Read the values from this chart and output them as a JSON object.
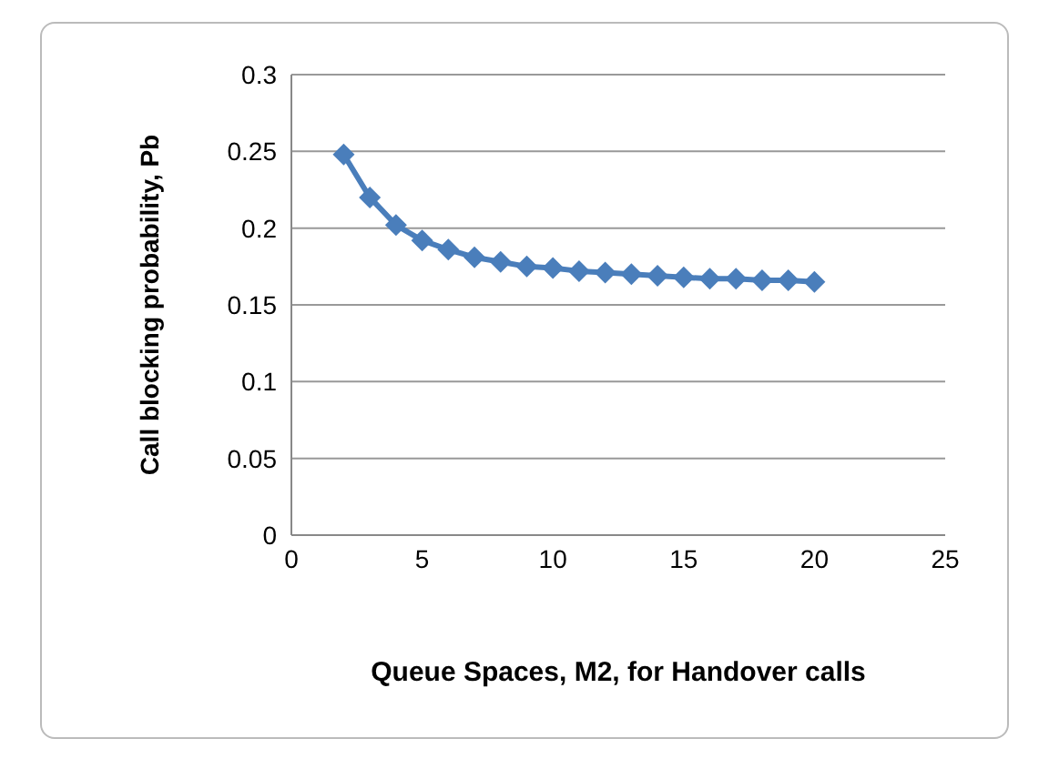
{
  "chart_data": {
    "type": "line",
    "xlabel": "Queue Spaces, M2, for Handover calls",
    "ylabel": "Call blocking  probability, Pb",
    "x": [
      2,
      3,
      4,
      5,
      6,
      7,
      8,
      9,
      10,
      11,
      12,
      13,
      14,
      15,
      16,
      17,
      18,
      19,
      20
    ],
    "series": [
      {
        "color": "#4a7ebb",
        "values": [
          0.248,
          0.22,
          0.202,
          0.192,
          0.186,
          0.181,
          0.178,
          0.175,
          0.174,
          0.172,
          0.171,
          0.17,
          0.169,
          0.168,
          0.167,
          0.167,
          0.166,
          0.166,
          0.165
        ]
      }
    ],
    "xlim": [
      0,
      25
    ],
    "xticks": [
      0,
      5,
      10,
      15,
      20,
      25
    ],
    "ylim": [
      0,
      0.3
    ],
    "yticks": [
      0,
      0.05,
      0.1,
      0.15,
      0.2,
      0.25,
      0.3
    ],
    "grid": "y",
    "marker": "diamond",
    "line_style": "solid",
    "legend": false
  }
}
